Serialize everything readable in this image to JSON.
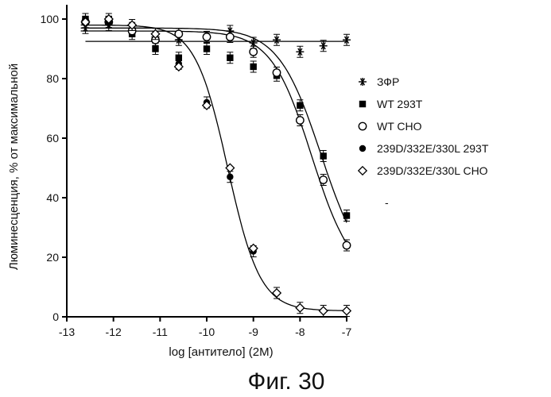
{
  "chart_data": {
    "type": "scatter",
    "title": "",
    "xlabel": "log [антитело] (2M)",
    "ylabel": "Люминесценция, % от максимальной",
    "xlim": [
      -13,
      -7
    ],
    "ylim": [
      0,
      105
    ],
    "xticks": [
      "-13",
      "-12",
      "-11",
      "-10",
      "-9",
      "-8",
      "-7"
    ],
    "yticks": [
      "0",
      "20",
      "40",
      "60",
      "80",
      "100"
    ],
    "legend_position": "right",
    "series": [
      {
        "name": "ЗФР",
        "marker": "asterisk",
        "x": [
          -12.6,
          -12.1,
          -11.6,
          -11.1,
          -10.6,
          -10.0,
          -9.5,
          -9.0,
          -8.5,
          -8.0,
          -7.5,
          -7.0
        ],
        "y": [
          97,
          98,
          97,
          94,
          93,
          94,
          96,
          92,
          93,
          89,
          91,
          93
        ],
        "fit": {
          "type": "flat",
          "value": 92.5
        }
      },
      {
        "name": "WT 293T",
        "marker": "filled-square",
        "x": [
          -12.6,
          -12.1,
          -11.6,
          -11.1,
          -10.6,
          -10.0,
          -9.5,
          -9.0,
          -8.5,
          -8.0,
          -7.5,
          -7.0
        ],
        "y": [
          100,
          100,
          95,
          90,
          87,
          90,
          87,
          84,
          81,
          71,
          54,
          34
        ],
        "fit": {
          "type": "sigmoid",
          "top": 97,
          "bottom": 12,
          "log_ec50": -7.55,
          "hill": 0.95
        }
      },
      {
        "name": "WT CHO",
        "marker": "open-circle",
        "x": [
          -12.6,
          -12.1,
          -11.6,
          -11.1,
          -10.6,
          -10.0,
          -9.5,
          -9.0,
          -8.5,
          -8.0,
          -7.5,
          -7.0
        ],
        "y": [
          99,
          99,
          96,
          93,
          95,
          94,
          94,
          89,
          82,
          66,
          46,
          24
        ],
        "fit": {
          "type": "sigmoid",
          "top": 96,
          "bottom": 12,
          "log_ec50": -7.75,
          "hill": 1.0
        }
      },
      {
        "name": "239D/332E/330L 293T",
        "marker": "filled-circle",
        "x": [
          -12.6,
          -12.1,
          -11.6,
          -11.1,
          -10.6,
          -10.0,
          -9.5,
          -9.0,
          -8.5,
          -8.0,
          -7.5,
          -7.0
        ],
        "y": [
          100,
          99,
          98,
          95,
          85,
          72,
          47,
          22,
          8,
          3,
          2,
          2
        ],
        "fit": {
          "type": "sigmoid",
          "top": 98,
          "bottom": 2,
          "log_ec50": -9.55,
          "hill": 1.25
        }
      },
      {
        "name": "239D/332E/330L CHO",
        "marker": "open-diamond",
        "x": [
          -12.6,
          -12.1,
          -11.6,
          -11.1,
          -10.6,
          -10.0,
          -9.5,
          -9.0,
          -8.5,
          -8.0,
          -7.5,
          -7.0
        ],
        "y": [
          99,
          100,
          98,
          95,
          84,
          71,
          50,
          23,
          8,
          3,
          2,
          2
        ],
        "fit": null
      }
    ]
  },
  "caption": "Фиг. 30",
  "stray_mark": "-"
}
